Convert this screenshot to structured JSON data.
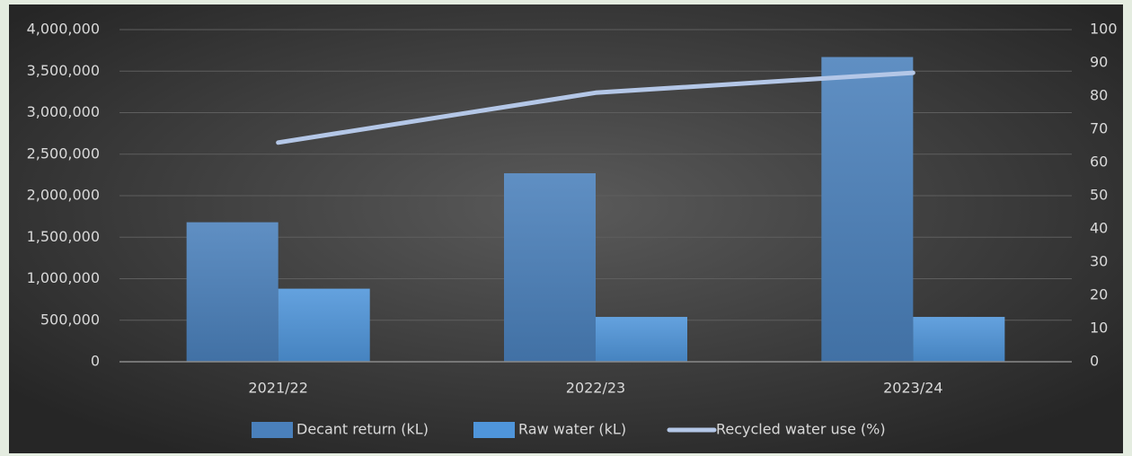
{
  "chart_data": {
    "type": "bar",
    "categories": [
      "2021/22",
      "2022/23",
      "2023/24"
    ],
    "series": [
      {
        "name": "Decant return (kL)",
        "type": "bar",
        "color": "#4a80bb",
        "values": [
          1680000,
          2270000,
          3670000
        ]
      },
      {
        "name": "Raw water (kL)",
        "type": "bar",
        "color": "#4f95da",
        "values": [
          880000,
          540000,
          540000
        ]
      },
      {
        "name": "Recycled water use (%)",
        "type": "line",
        "axis": "y2",
        "color": "#b4c7e7",
        "values": [
          66,
          81,
          87
        ]
      }
    ],
    "ylim": [
      0,
      4000000
    ],
    "yticks": [
      0,
      {
        "value": 500000,
        "label": "500,000"
      },
      {
        "value": 1000000,
        "label": "1,000,000"
      },
      {
        "value": 1500000,
        "label": "1,500,000"
      },
      {
        "value": 2000000,
        "label": "2,000,000"
      },
      {
        "value": 2500000,
        "label": "2,500,000"
      },
      {
        "value": 3000000,
        "label": "3,000,000"
      },
      {
        "value": 3500000,
        "label": "3,500,000"
      },
      {
        "value": 4000000,
        "label": "4,000,000"
      }
    ],
    "y2lim": [
      0,
      100
    ],
    "y2ticks": [
      0,
      10,
      20,
      30,
      40,
      50,
      60,
      70,
      80,
      90,
      100
    ],
    "grid": true,
    "legend": "bottom"
  }
}
